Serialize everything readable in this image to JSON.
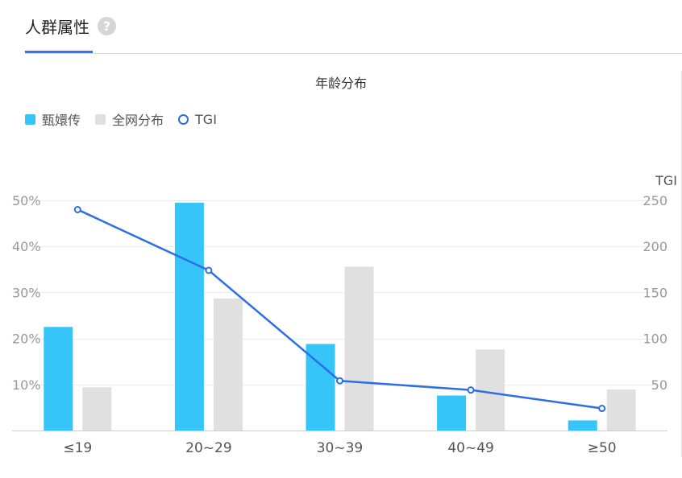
{
  "header": {
    "tab_title": "人群属性",
    "help_icon": "?"
  },
  "colors": {
    "brand_series": "#35c5f8",
    "overall_series": "#e0e0e0",
    "tgi_line": "#2b6ee6",
    "tab_accent": "#2878e8"
  },
  "chart_data": {
    "type": "bar",
    "title": "年龄分布",
    "categories": [
      "≤19",
      "20~29",
      "30~39",
      "40~49",
      "≥50"
    ],
    "series": [
      {
        "name": "甄嬛传",
        "type": "bar",
        "axis": "left",
        "values": [
          22.5,
          49.5,
          18.8,
          7.6,
          2.2
        ]
      },
      {
        "name": "全网分布",
        "type": "bar",
        "axis": "left",
        "values": [
          9.4,
          28.7,
          35.6,
          17.6,
          8.9
        ]
      },
      {
        "name": "TGI",
        "type": "line",
        "axis": "right",
        "values": [
          240,
          174,
          54,
          44,
          24
        ]
      }
    ],
    "y_left": {
      "min": 0,
      "max": 50,
      "ticks": [
        "10%",
        "20%",
        "30%",
        "40%",
        "50%"
      ],
      "tick_values": [
        10,
        20,
        30,
        40,
        50
      ]
    },
    "y_right": {
      "label": "TGI",
      "min": 0,
      "max": 250,
      "ticks": [
        "50",
        "100",
        "150",
        "200",
        "250"
      ],
      "tick_values": [
        50,
        100,
        150,
        200,
        250
      ]
    },
    "grid": true,
    "legend_position": "top-left"
  }
}
